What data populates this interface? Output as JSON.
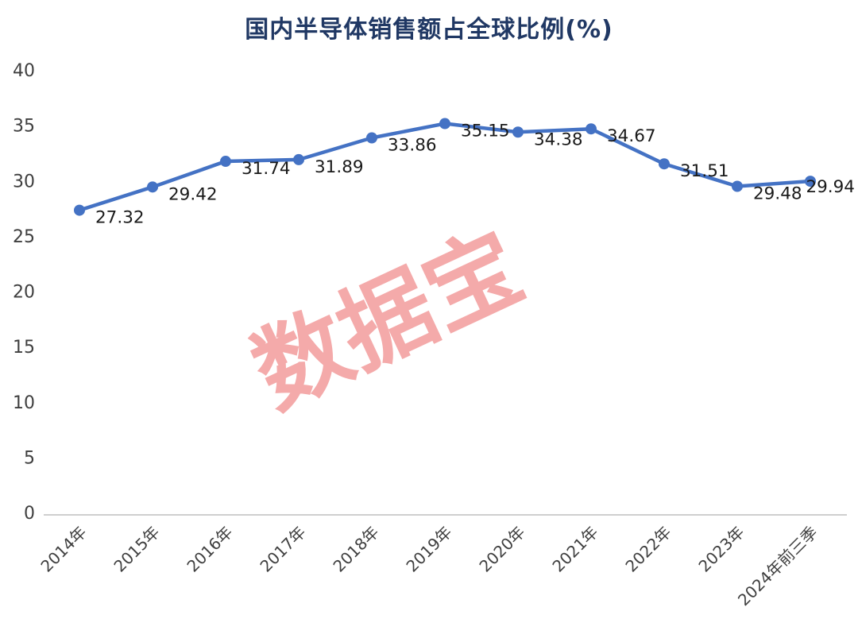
{
  "page": {
    "background": "#ffffff"
  },
  "chart_data": {
    "type": "line",
    "title": "国内半导体销售额占全球比例(%)",
    "categories": [
      "2014年",
      "2015年",
      "2016年",
      "2017年",
      "2018年",
      "2019年",
      "2020年",
      "2021年",
      "2022年",
      "2023年",
      "2024年前三季"
    ],
    "values": [
      27.32,
      29.42,
      31.74,
      31.89,
      33.86,
      35.15,
      34.38,
      34.67,
      31.51,
      29.48,
      29.94
    ],
    "data_labels": [
      "27.32",
      "29.42",
      "31.74",
      "31.89",
      "33.86",
      "35.15",
      "34.38",
      "34.67",
      "31.51",
      "29.48",
      "29.94"
    ],
    "ylim": [
      0,
      40
    ],
    "yticks": [
      0,
      5,
      10,
      15,
      20,
      25,
      30,
      35,
      40
    ],
    "grid": false,
    "legend": "none",
    "line_color": "#4472c4",
    "marker_color": "#4472c4",
    "label_color": "#1a1a1a",
    "axis_text_color": "#3f3f3f",
    "axis_line_color": "#bfbfbf",
    "title_color": "#203864",
    "watermark": {
      "text": "数据宝",
      "color": "#f08a8a",
      "opacity": 0.72,
      "rotation_deg": -25
    }
  }
}
